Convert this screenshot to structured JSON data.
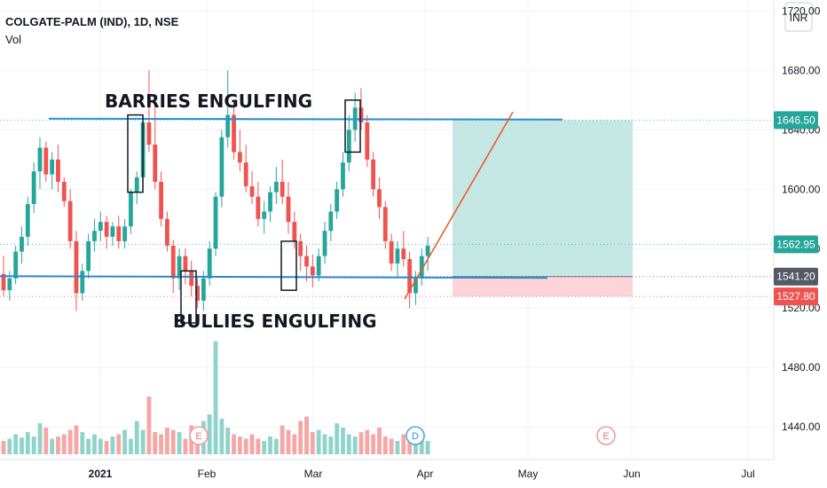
{
  "header": {
    "title": "COLGATE-PALM (IND), 1D, NSE",
    "volume_label": "Vol"
  },
  "currency": "INR",
  "colors": {
    "up": "#26a69a",
    "down": "#ef5350",
    "up_vol": "#8fd3cb",
    "down_vol": "#f5a6a5",
    "support": "#2b8cd6",
    "trend": "#f4511e",
    "target_zone": "#b2dfdb",
    "stop_zone": "#ffcdd2",
    "price_badge": "#26a69a",
    "entry_badge": "#545a66",
    "stop_badge": "#ef5350"
  },
  "chart_data": {
    "type": "candlestick",
    "y_axis": {
      "ticks": [
        1440,
        1480,
        1520,
        1560,
        1600,
        1640,
        1680,
        1720
      ],
      "tick_labels": [
        "1440.00",
        "1480.00",
        "1520.00",
        "1560.00",
        "1600.00",
        "1640.00",
        "1680.00",
        "1720.00"
      ],
      "range": [
        1418,
        1725
      ]
    },
    "x_axis": {
      "labels": [
        "2021",
        "Feb",
        "Mar",
        "Apr",
        "May",
        "Jun",
        "Jul"
      ]
    },
    "price_labels": {
      "last": "1562.95",
      "target": "1646.50",
      "entry": "1541.20",
      "stop": "1527.80"
    },
    "levels": {
      "resistance": 1647.5,
      "support": 1541.5,
      "target": 1646.5,
      "entry": 1541.2,
      "stop": 1527.8
    },
    "annotations": {
      "resistance_label": "BARRIES ENGULFING",
      "support_label": "BULLIES ENGULFING"
    },
    "events": [
      {
        "label": "E"
      },
      {
        "label": "D"
      },
      {
        "label": "E"
      }
    ],
    "candles": [
      [
        1543,
        1555,
        1528,
        1532
      ],
      [
        1532,
        1545,
        1525,
        1540
      ],
      [
        1540,
        1562,
        1536,
        1558
      ],
      [
        1558,
        1575,
        1550,
        1568
      ],
      [
        1568,
        1595,
        1562,
        1590
      ],
      [
        1590,
        1618,
        1584,
        1612
      ],
      [
        1612,
        1635,
        1600,
        1628
      ],
      [
        1628,
        1632,
        1605,
        1610
      ],
      [
        1610,
        1625,
        1600,
        1620
      ],
      [
        1620,
        1630,
        1598,
        1605
      ],
      [
        1605,
        1608,
        1588,
        1592
      ],
      [
        1592,
        1600,
        1560,
        1565
      ],
      [
        1565,
        1572,
        1518,
        1530
      ],
      [
        1530,
        1550,
        1525,
        1545
      ],
      [
        1545,
        1570,
        1540,
        1565
      ],
      [
        1565,
        1580,
        1558,
        1572
      ],
      [
        1572,
        1585,
        1565,
        1578
      ],
      [
        1578,
        1582,
        1560,
        1568
      ],
      [
        1568,
        1578,
        1562,
        1575
      ],
      [
        1575,
        1582,
        1560,
        1565
      ],
      [
        1565,
        1580,
        1560,
        1575
      ],
      [
        1575,
        1600,
        1570,
        1598
      ],
      [
        1598,
        1612,
        1590,
        1608
      ],
      [
        1608,
        1650,
        1600,
        1645
      ],
      [
        1645,
        1680,
        1625,
        1630
      ],
      [
        1630,
        1660,
        1600,
        1605
      ],
      [
        1605,
        1612,
        1575,
        1580
      ],
      [
        1580,
        1585,
        1558,
        1562
      ],
      [
        1562,
        1566,
        1530,
        1540
      ],
      [
        1540,
        1560,
        1532,
        1555
      ],
      [
        1555,
        1560,
        1536,
        1545
      ],
      [
        1545,
        1552,
        1528,
        1535
      ],
      [
        1535,
        1540,
        1520,
        1525
      ],
      [
        1525,
        1545,
        1518,
        1540
      ],
      [
        1540,
        1565,
        1535,
        1560
      ],
      [
        1560,
        1598,
        1555,
        1595
      ],
      [
        1595,
        1640,
        1588,
        1635
      ],
      [
        1635,
        1680,
        1628,
        1650
      ],
      [
        1650,
        1660,
        1620,
        1625
      ],
      [
        1625,
        1640,
        1612,
        1618
      ],
      [
        1618,
        1630,
        1598,
        1602
      ],
      [
        1602,
        1612,
        1590,
        1595
      ],
      [
        1595,
        1605,
        1575,
        1580
      ],
      [
        1580,
        1592,
        1570,
        1585
      ],
      [
        1585,
        1602,
        1578,
        1598
      ],
      [
        1598,
        1615,
        1590,
        1605
      ],
      [
        1605,
        1620,
        1590,
        1595
      ],
      [
        1595,
        1605,
        1570,
        1578
      ],
      [
        1578,
        1585,
        1560,
        1565
      ],
      [
        1565,
        1570,
        1545,
        1555
      ],
      [
        1555,
        1562,
        1538,
        1548
      ],
      [
        1548,
        1556,
        1534,
        1542
      ],
      [
        1542,
        1560,
        1538,
        1555
      ],
      [
        1555,
        1578,
        1550,
        1572
      ],
      [
        1572,
        1590,
        1565,
        1585
      ],
      [
        1585,
        1605,
        1580,
        1600
      ],
      [
        1600,
        1625,
        1595,
        1618
      ],
      [
        1618,
        1650,
        1612,
        1640
      ],
      [
        1640,
        1665,
        1632,
        1655
      ],
      [
        1655,
        1668,
        1640,
        1645
      ],
      [
        1645,
        1650,
        1615,
        1620
      ],
      [
        1620,
        1625,
        1595,
        1600
      ],
      [
        1600,
        1608,
        1580,
        1588
      ],
      [
        1588,
        1592,
        1560,
        1565
      ],
      [
        1565,
        1570,
        1545,
        1550
      ],
      [
        1550,
        1565,
        1540,
        1560
      ],
      [
        1560,
        1572,
        1548,
        1553
      ],
      [
        1553,
        1558,
        1520,
        1530
      ],
      [
        1530,
        1545,
        1522,
        1540
      ],
      [
        1540,
        1560,
        1535,
        1555
      ],
      [
        1555,
        1568,
        1545,
        1562
      ]
    ],
    "volume": [
      12,
      14,
      18,
      15,
      20,
      16,
      28,
      24,
      14,
      16,
      18,
      22,
      26,
      20,
      14,
      18,
      14,
      12,
      16,
      18,
      22,
      14,
      30,
      22,
      52,
      20,
      18,
      24,
      22,
      20,
      14,
      26,
      20,
      30,
      36,
      102,
      32,
      24,
      18,
      16,
      14,
      18,
      14,
      12,
      16,
      14,
      26,
      22,
      18,
      30,
      34,
      20,
      22,
      18,
      16,
      28,
      24,
      18,
      16,
      20,
      22,
      18,
      24,
      16,
      14,
      12,
      18,
      22,
      20,
      14,
      12
    ]
  }
}
